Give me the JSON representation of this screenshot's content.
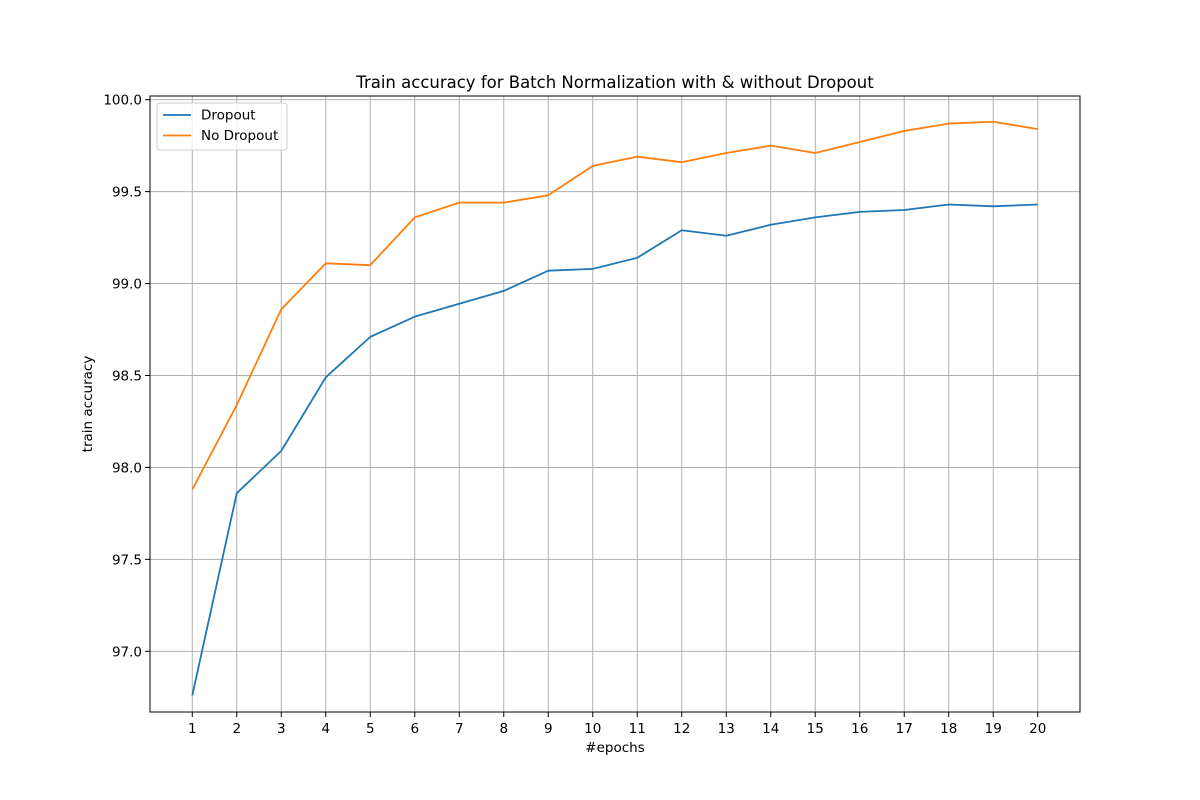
{
  "chart_data": {
    "type": "line",
    "title": "Train accuracy for Batch Normalization with & without Dropout",
    "xlabel": "#epochs",
    "ylabel": "train accuracy",
    "x": [
      1,
      2,
      3,
      4,
      5,
      6,
      7,
      8,
      9,
      10,
      11,
      12,
      13,
      14,
      15,
      16,
      17,
      18,
      19,
      20
    ],
    "xlim": [
      0.05,
      20.95
    ],
    "ylim": [
      96.67,
      100.02
    ],
    "yticks": [
      97.0,
      97.5,
      98.0,
      98.5,
      99.0,
      99.5,
      100.0
    ],
    "ytick_labels": [
      "97.0",
      "97.5",
      "98.0",
      "98.5",
      "99.0",
      "99.5",
      "100.0"
    ],
    "grid": true,
    "legend_position": "top-left",
    "series": [
      {
        "name": "Dropout",
        "color": "#1f77b4",
        "values": [
          96.76,
          97.86,
          98.09,
          98.49,
          98.71,
          98.82,
          98.89,
          98.96,
          99.07,
          99.08,
          99.14,
          99.29,
          99.26,
          99.32,
          99.36,
          99.39,
          99.4,
          99.43,
          99.42,
          99.43
        ]
      },
      {
        "name": "No Dropout",
        "color": "#ff7f0e",
        "values": [
          97.88,
          98.34,
          98.86,
          99.11,
          99.1,
          99.36,
          99.44,
          99.44,
          99.48,
          99.64,
          99.69,
          99.66,
          99.71,
          99.75,
          99.71,
          99.77,
          99.83,
          99.87,
          99.88,
          99.84
        ]
      }
    ]
  }
}
